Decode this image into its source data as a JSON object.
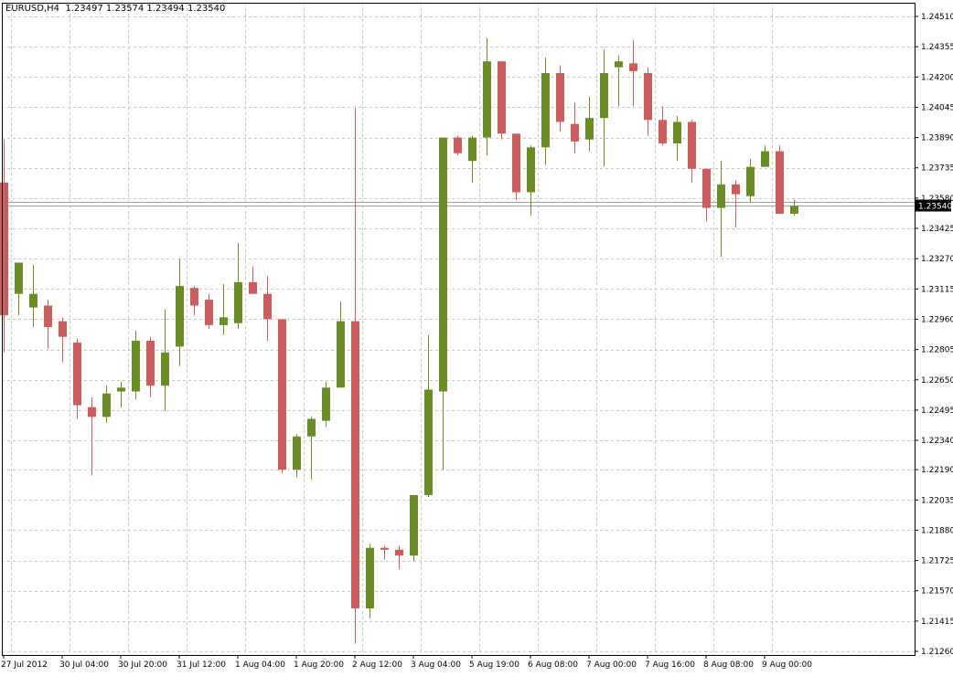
{
  "chart_title": "EURUSD,H4  1.23497 1.23574 1.23494 1.23540",
  "current_price_label": "1.23540",
  "colors": {
    "bull": "#6b8e23",
    "bear": "#cd5c5c",
    "grid": "#c8c8c8",
    "axis": "#000000",
    "price_line": "#a0a0a0",
    "price_tag": "#000000"
  },
  "chart_data": {
    "type": "candlestick",
    "symbol": "EURUSD",
    "timeframe": "H4",
    "ohlc_header": {
      "open": 1.23497,
      "high": 1.23574,
      "low": 1.23494,
      "close": 1.2354
    },
    "current_price": 1.2354,
    "ylim": [
      1.2126,
      1.2451
    ],
    "y_ticks": [
      1.2451,
      1.24355,
      1.242,
      1.24045,
      1.2389,
      1.23735,
      1.2358,
      1.23425,
      1.2327,
      1.23115,
      1.2296,
      1.22805,
      1.2265,
      1.22495,
      1.2234,
      1.2219,
      1.22035,
      1.2188,
      1.21725,
      1.2157,
      1.21415,
      1.2126
    ],
    "y_tick_labels": [
      "1.24510",
      "1.24355",
      "1.24200",
      "1.24045",
      "1.23890",
      "1.23735",
      "1.23580",
      "1.23425",
      "1.23270",
      "1.23115",
      "1.22960",
      "1.22805",
      "1.22650",
      "1.22495",
      "1.22340",
      "1.22190",
      "1.22035",
      "1.21880",
      "1.21725",
      "1.21570",
      "1.21415",
      "1.21260"
    ],
    "x_tick_labels": [
      "27 Jul 2012",
      "30 Jul 04:00",
      "30 Jul 20:00",
      "31 Jul 12:00",
      "1 Aug 04:00",
      "1 Aug 20:00",
      "2 Aug 12:00",
      "3 Aug 04:00",
      "5 Aug 19:00",
      "6 Aug 08:00",
      "7 Aug 00:00",
      "7 Aug 16:00",
      "8 Aug 08:00",
      "9 Aug 00:00"
    ],
    "x_tick_bar_index": [
      0,
      4,
      8,
      12,
      16,
      20,
      24,
      28,
      32,
      36,
      40,
      44,
      48,
      52
    ],
    "candles": [
      [
        1.2366,
        1.2388,
        1.2279,
        1.2298
      ],
      [
        1.2309,
        1.2325,
        1.2298,
        1.2325
      ],
      [
        1.2302,
        1.2324,
        1.2292,
        1.2309
      ],
      [
        1.2303,
        1.2306,
        1.2281,
        1.2292
      ],
      [
        1.2295,
        1.2297,
        1.2274,
        1.2287
      ],
      [
        1.2284,
        1.2286,
        1.2245,
        1.2252
      ],
      [
        1.2251,
        1.2256,
        1.2216,
        1.2246
      ],
      [
        1.2246,
        1.2262,
        1.2243,
        1.2258
      ],
      [
        1.2259,
        1.2264,
        1.2251,
        1.2261
      ],
      [
        1.2259,
        1.229,
        1.2255,
        1.2285
      ],
      [
        1.2285,
        1.2287,
        1.2256,
        1.2262
      ],
      [
        1.2262,
        1.2301,
        1.2249,
        1.2279
      ],
      [
        1.2282,
        1.2327,
        1.2272,
        1.2313
      ],
      [
        1.2312,
        1.2313,
        1.2298,
        1.2303
      ],
      [
        1.2306,
        1.2309,
        1.2291,
        1.2293
      ],
      [
        1.2293,
        1.2314,
        1.2288,
        1.2297
      ],
      [
        1.2294,
        1.2335,
        1.2291,
        1.2315
      ],
      [
        1.2315,
        1.2323,
        1.2309,
        1.2309
      ],
      [
        1.2309,
        1.2318,
        1.2285,
        1.2296
      ],
      [
        1.2296,
        1.2296,
        1.2217,
        1.2219
      ],
      [
        1.2219,
        1.2237,
        1.2215,
        1.2236
      ],
      [
        1.2236,
        1.2246,
        1.2214,
        1.2245
      ],
      [
        1.2244,
        1.2264,
        1.2241,
        1.2261
      ],
      [
        1.2261,
        1.2305,
        1.2261,
        1.2295
      ],
      [
        1.2295,
        1.2404,
        1.213,
        1.2148
      ],
      [
        1.2148,
        1.2181,
        1.2143,
        1.2179
      ],
      [
        1.2179,
        1.218,
        1.2173,
        1.2178
      ],
      [
        1.2178,
        1.218,
        1.2168,
        1.2175
      ],
      [
        1.2175,
        1.2206,
        1.2172,
        1.2206
      ],
      [
        1.2206,
        1.2288,
        1.2205,
        1.226
      ],
      [
        1.2259,
        1.2389,
        1.2219,
        1.2389
      ],
      [
        1.2389,
        1.239,
        1.238,
        1.2381
      ],
      [
        1.2377,
        1.239,
        1.2366,
        1.2389
      ],
      [
        1.2389,
        1.244,
        1.238,
        1.2428
      ],
      [
        1.2428,
        1.2428,
        1.2388,
        1.2391
      ],
      [
        1.2391,
        1.2391,
        1.2357,
        1.2361
      ],
      [
        1.2361,
        1.2385,
        1.2349,
        1.2384
      ],
      [
        1.2384,
        1.243,
        1.2375,
        1.2422
      ],
      [
        1.2422,
        1.2426,
        1.2392,
        1.2397
      ],
      [
        1.2396,
        1.2407,
        1.2381,
        1.2387
      ],
      [
        1.2388,
        1.241,
        1.2382,
        1.2399
      ],
      [
        1.2399,
        1.2434,
        1.2374,
        1.2422
      ],
      [
        1.2425,
        1.2431,
        1.2405,
        1.2428
      ],
      [
        1.2427,
        1.2439,
        1.2405,
        1.2423
      ],
      [
        1.2422,
        1.2425,
        1.239,
        1.2398
      ],
      [
        1.2398,
        1.2405,
        1.2385,
        1.2386
      ],
      [
        1.2386,
        1.24,
        1.2377,
        1.2397
      ],
      [
        1.2397,
        1.2398,
        1.2366,
        1.2373
      ],
      [
        1.2373,
        1.2373,
        1.2346,
        1.2353
      ],
      [
        1.2353,
        1.2377,
        1.2328,
        1.2365
      ],
      [
        1.2365,
        1.2367,
        1.2343,
        1.236
      ],
      [
        1.2359,
        1.2378,
        1.2356,
        1.2374
      ],
      [
        1.2374,
        1.2385,
        1.2374,
        1.2382
      ],
      [
        1.2382,
        1.2385,
        1.235,
        1.235
      ],
      [
        1.235,
        1.2357,
        1.2349,
        1.2354
      ]
    ]
  }
}
